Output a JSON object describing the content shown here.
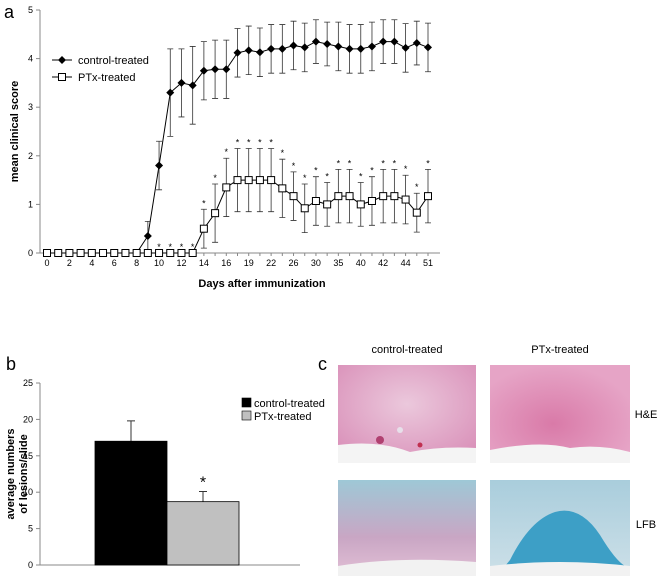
{
  "chart_data": [
    {
      "type": "line",
      "panel_label": "a",
      "xlabel": "Days after immunization",
      "ylabel": "mean clinical score",
      "categories": [
        "0",
        null,
        "2",
        null,
        "4",
        null,
        "6",
        null,
        "8",
        null,
        "10",
        null,
        "12",
        null,
        "14",
        null,
        "16",
        null,
        "19",
        null,
        "22",
        null,
        "26",
        null,
        "30",
        null,
        "35",
        null,
        "40",
        null,
        "42",
        null,
        "44",
        null,
        "51"
      ],
      "ylim": [
        0,
        5
      ],
      "yticks": [
        0,
        1,
        2,
        3,
        4,
        5
      ],
      "legend": "upper left",
      "series": [
        {
          "name": "control-treated",
          "color": "#000000",
          "marker": "diamond",
          "values": [
            0,
            0,
            0,
            0,
            0,
            0,
            0,
            0,
            0,
            0.35,
            1.8,
            3.3,
            3.5,
            3.45,
            3.75,
            3.78,
            3.78,
            4.12,
            4.17,
            4.13,
            4.2,
            4.2,
            4.27,
            4.23,
            4.35,
            4.3,
            4.25,
            4.2,
            4.2,
            4.25,
            4.35,
            4.35,
            4.22,
            4.32,
            4.23
          ],
          "errors": [
            0,
            0,
            0,
            0,
            0,
            0,
            0,
            0,
            0,
            0.3,
            0.5,
            0.9,
            0.7,
            0.8,
            0.6,
            0.6,
            0.6,
            0.5,
            0.5,
            0.5,
            0.5,
            0.5,
            0.5,
            0.5,
            0.45,
            0.45,
            0.5,
            0.5,
            0.5,
            0.5,
            0.45,
            0.45,
            0.5,
            0.45,
            0.5
          ]
        },
        {
          "name": "PTx-treated",
          "color": "#000000",
          "marker": "square",
          "values": [
            0,
            0,
            0,
            0,
            0,
            0,
            0,
            0,
            0,
            0,
            0,
            0,
            0,
            0,
            0.5,
            0.82,
            1.35,
            1.5,
            1.5,
            1.5,
            1.5,
            1.33,
            1.17,
            0.92,
            1.07,
            1.0,
            1.17,
            1.17,
            1.0,
            1.07,
            1.17,
            1.17,
            1.1,
            0.83,
            1.17
          ],
          "errors": [
            0,
            0,
            0,
            0,
            0,
            0,
            0,
            0,
            0,
            0,
            0,
            0,
            0,
            0,
            0.4,
            0.6,
            0.6,
            0.65,
            0.65,
            0.65,
            0.65,
            0.6,
            0.5,
            0.5,
            0.5,
            0.45,
            0.55,
            0.55,
            0.45,
            0.5,
            0.55,
            0.55,
            0.5,
            0.4,
            0.55
          ]
        }
      ],
      "significance_label": "*",
      "significant_indices": [
        10,
        11,
        12,
        13,
        14,
        15,
        16,
        17,
        18,
        19,
        20,
        21,
        22,
        23,
        24,
        25,
        26,
        27,
        28,
        29,
        30,
        31,
        32,
        33,
        34
      ]
    },
    {
      "type": "bar",
      "panel_label": "b",
      "ylabel_lines": [
        "average numbers",
        "of lesions/slide"
      ],
      "ylim": [
        0,
        25
      ],
      "yticks": [
        0,
        5,
        10,
        15,
        20,
        25
      ],
      "legend": "upper right",
      "series": [
        {
          "name": "control-treated",
          "color": "#000000",
          "values": [
            17
          ],
          "errors": [
            2.8
          ]
        },
        {
          "name": "PTx-treated",
          "color": "#c0c0c0",
          "values": [
            8.7
          ],
          "errors": [
            1.4
          ]
        }
      ],
      "significance_label": "*",
      "significant_series": [
        1
      ]
    }
  ],
  "image_panel": {
    "label": "c",
    "columns": [
      "control-treated",
      "PTx-treated"
    ],
    "rows": [
      "H&E",
      "LFB"
    ]
  }
}
